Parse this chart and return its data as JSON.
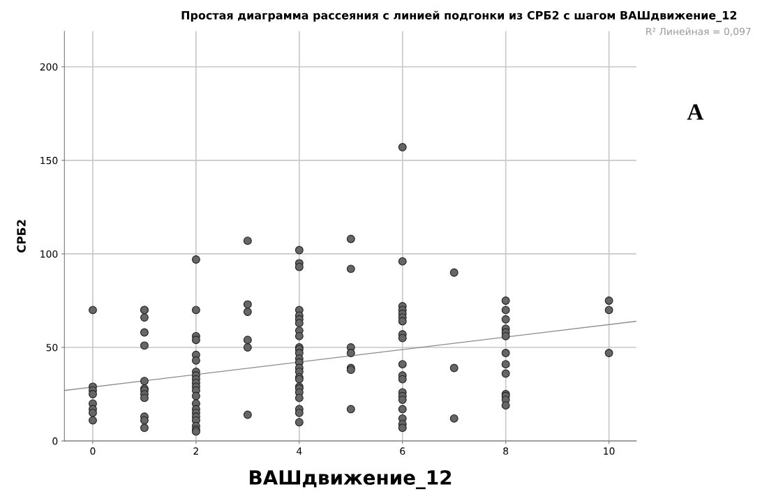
{
  "chart_data": {
    "type": "scatter",
    "title": "Простая диаграмма рассеяния с линией подгонки из СРБ2 с шагом ВАШдвижение_12",
    "xlabel": "ВАШдвижение_12",
    "ylabel": "СРБ2",
    "annotations": [
      "R² Линейная = 0,097",
      "A"
    ],
    "xlim": [
      -0.55,
      10.53
    ],
    "xticks": [
      0,
      2,
      4,
      6,
      8,
      10
    ],
    "ylim": [
      0,
      219
    ],
    "yticks": [
      0,
      50,
      100,
      150,
      200
    ],
    "grid": true,
    "legend": false,
    "marker": "circle",
    "series": [
      {
        "color": "#666666",
        "x": [
          0,
          0,
          0,
          0,
          0,
          0,
          0,
          0,
          1,
          1,
          1,
          1,
          1,
          1,
          1,
          1,
          1,
          1,
          1,
          1,
          1,
          2,
          2,
          2,
          2,
          2,
          2,
          2,
          2,
          2,
          2,
          2,
          2,
          2,
          2,
          2,
          2,
          2,
          2,
          2,
          2,
          2,
          3,
          3,
          3,
          3,
          3,
          3,
          4,
          4,
          4,
          4,
          4,
          4,
          4,
          4,
          4,
          4,
          4,
          4,
          4,
          4,
          4,
          4,
          4,
          4,
          4,
          4,
          4,
          4,
          4,
          4,
          4,
          5,
          5,
          5,
          5,
          5,
          5,
          5,
          6,
          6,
          6,
          6,
          6,
          6,
          6,
          6,
          6,
          6,
          6,
          6,
          6,
          6,
          6,
          6,
          6,
          6,
          6,
          7,
          7,
          7,
          8,
          8,
          8,
          8,
          8,
          8,
          8,
          8,
          8,
          8,
          8,
          8,
          8,
          10,
          10,
          10
        ],
        "values": [
          70,
          29,
          27,
          25,
          20,
          17,
          15,
          11,
          70,
          70,
          66,
          58,
          51,
          32,
          28,
          27,
          25,
          23,
          13,
          11,
          7,
          97,
          70,
          56,
          54,
          46,
          43,
          37,
          35,
          33,
          31,
          29,
          27,
          24,
          20,
          17,
          15,
          13,
          11,
          8,
          6,
          5,
          107,
          73,
          69,
          54,
          50,
          14,
          102,
          95,
          93,
          70,
          67,
          65,
          63,
          59,
          56,
          50,
          49,
          47,
          44,
          42,
          39,
          37,
          34,
          33,
          29,
          28,
          26,
          23,
          17,
          15,
          10,
          108,
          92,
          50,
          47,
          39,
          38,
          17,
          157,
          96,
          72,
          70,
          68,
          66,
          64,
          57,
          55,
          41,
          35,
          33,
          26,
          24,
          22,
          17,
          12,
          9,
          7,
          90,
          39,
          12,
          75,
          70,
          65,
          60,
          58,
          56,
          47,
          41,
          36,
          25,
          24,
          22,
          19,
          75,
          70,
          47
        ]
      },
      {
        "type": "line",
        "color": "#8c8c8c",
        "marker": "none",
        "x": [
          -0.55,
          10.53
        ],
        "values": [
          27,
          64
        ]
      }
    ]
  }
}
